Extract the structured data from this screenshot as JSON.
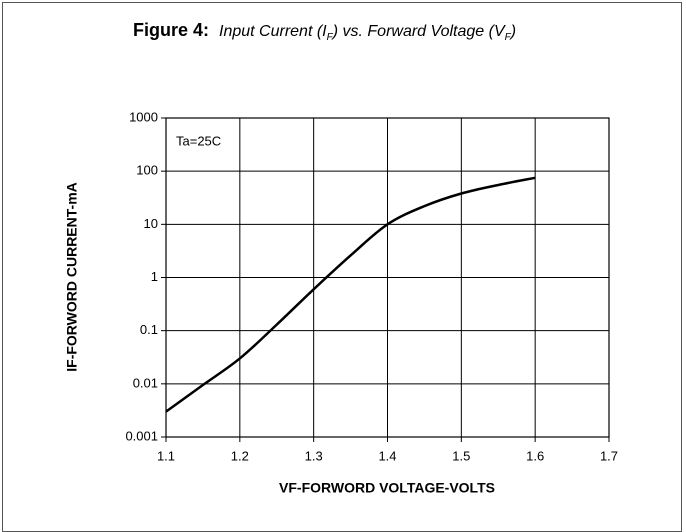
{
  "chart_data": {
    "type": "line",
    "title": {
      "label": "Figure 4:",
      "parts": [
        "Input Current (I",
        "F",
        ") vs. Forward Voltage (V",
        "F",
        ")"
      ]
    },
    "annotation": "Ta=25C",
    "x_label": "VF-FORWORD VOLTAGE-VOLTS",
    "y_label": "IF-FORWORD CURRENT-mA",
    "x": [
      1.1,
      1.15,
      1.2,
      1.25,
      1.3,
      1.35,
      1.4,
      1.45,
      1.5,
      1.55,
      1.6
    ],
    "series": [
      {
        "color": "#000000",
        "values": [
          0.003,
          0.0095,
          0.03,
          0.13,
          0.6,
          2.6,
          10,
          22,
          38,
          55,
          75
        ]
      }
    ],
    "xlim": [
      1.1,
      1.7
    ],
    "xticks": [
      1.1,
      1.2,
      1.3,
      1.4,
      1.5,
      1.6,
      1.7
    ],
    "ylim": [
      0.001,
      1000
    ],
    "yticks": [
      0.001,
      0.01,
      0.1,
      1,
      10,
      100,
      1000
    ],
    "ylog": true,
    "grid": true
  }
}
